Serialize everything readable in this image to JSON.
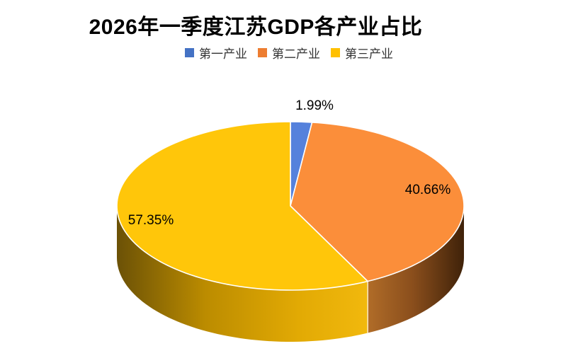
{
  "page": {
    "background": "#FFFFFF"
  },
  "chart_data": {
    "type": "pie",
    "style": "3d",
    "title": "2026年一季度江苏GDP各产业占比",
    "categories": [
      "第一产业",
      "第二产业",
      "第三产业"
    ],
    "values": [
      1.99,
      40.66,
      57.35
    ],
    "data_labels": [
      "1.99%",
      "40.66%",
      "57.35%"
    ],
    "unit": "%",
    "start_angle_deg": 0,
    "direction": "clockwise",
    "legend_position": "top",
    "legend_colors": [
      "#4472C4",
      "#ED7D31",
      "#FFC000"
    ],
    "slice_colors": [
      "#5581DC",
      "#FB8E3A",
      "#FFC60A"
    ],
    "wall_divider_color": "rgba(255,248,235,0.9)",
    "slice_border_color": "#FFFFFF",
    "title_color": "#000000",
    "label_color": "#000000",
    "legend_text_color": "#333333"
  }
}
